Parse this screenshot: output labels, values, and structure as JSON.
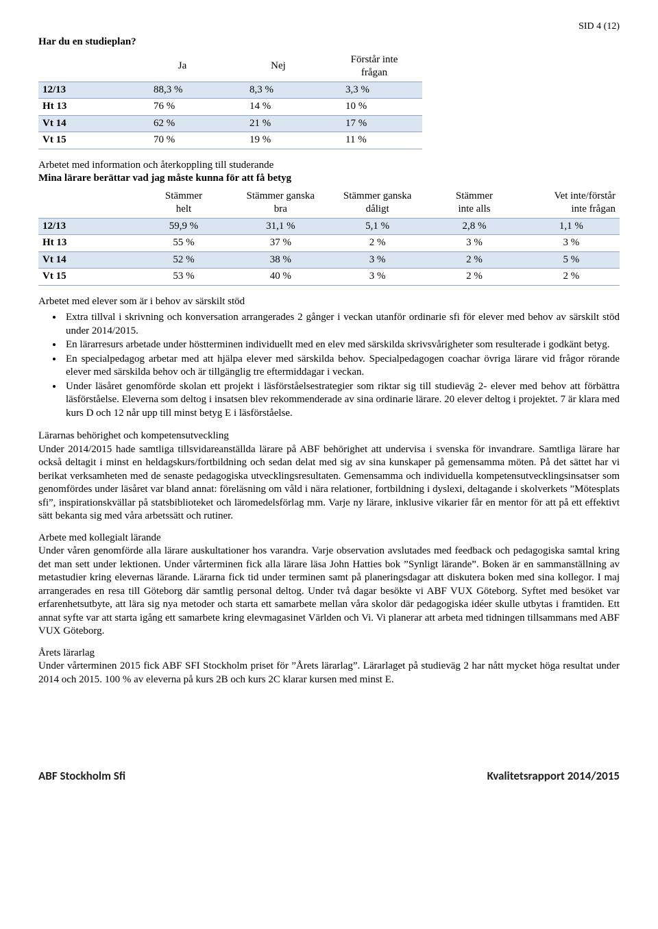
{
  "pageNumber": "SID 4 (12)",
  "q1": {
    "title": "Har du en studieplan?",
    "headers": [
      "",
      "Ja",
      "Nej",
      "Förstår inte frågan"
    ],
    "rows": [
      {
        "label": "12/13",
        "v": [
          "88,3 %",
          "8,3 %",
          "3,3 %"
        ],
        "shade": true
      },
      {
        "label": "Ht 13",
        "v": [
          "76 %",
          "14 %",
          "10 %"
        ],
        "shade": false
      },
      {
        "label": "Vt 14",
        "v": [
          "62 %",
          "21 %",
          "17 %"
        ],
        "shade": true
      },
      {
        "label": "Vt 15",
        "v": [
          "70 %",
          "19 %",
          "11 %"
        ],
        "shade": false
      }
    ]
  },
  "q2": {
    "intro": "Arbetet med information och återkoppling till studerande",
    "title": "Mina lärare berättar vad jag måste kunna för att få betyg",
    "headers": [
      "",
      "Stämmer helt",
      "Stämmer ganska bra",
      "Stämmer ganska dåligt",
      "Stämmer inte alls",
      "Vet inte/förstår inte frågan"
    ],
    "rows": [
      {
        "label": "12/13",
        "v": [
          "59,9 %",
          "31,1 %",
          "5,1 %",
          "2,8 %",
          "1,1 %"
        ],
        "shade": true
      },
      {
        "label": "Ht 13",
        "v": [
          "55 %",
          "37 %",
          "2 %",
          "3 %",
          "3 %"
        ],
        "shade": false
      },
      {
        "label": "Vt 14",
        "v": [
          "52 %",
          "38 %",
          "3 %",
          "2 %",
          "5 %"
        ],
        "shade": true
      },
      {
        "label": "Vt 15",
        "v": [
          "53 %",
          "40 %",
          "3 %",
          "2 %",
          "2 %"
        ],
        "shade": false
      }
    ]
  },
  "bulletsHeading": "Arbetet med elever som är i behov av särskilt stöd",
  "bullets": [
    "Extra tillval i skrivning och konversation arrangerades 2 gånger i veckan utanför ordinarie sfi för elever med behov av särskilt stöd under 2014/2015.",
    "En lärarresurs arbetade under höstterminen individuellt med en elev med särskilda skrivsvårigheter som resulterade i godkänt betyg.",
    "En specialpedagog arbetar med att hjälpa elever med särskilda behov. Specialpedagogen coachar övriga lärare vid frågor rörande elever med särskilda behov och är tillgänglig tre eftermiddagar i veckan.",
    "Under läsåret genomförde skolan ett projekt i läsförståelsestrategier som riktar sig till studieväg 2- elever med behov att förbättra läsförståelse. Eleverna som deltog i insatsen blev rekommenderade av sina ordinarie lärare. 20 elever deltog i projektet. 7 är klara med kurs D och 12 når upp till minst betyg E i läsförståelse."
  ],
  "sec1": {
    "heading": "Lärarnas behörighet och kompetensutveckling",
    "body": "Under 2014/2015 hade samtliga tillsvidareanställda lärare på ABF behörighet att undervisa i svenska för invandrare. Samtliga lärare har också deltagit i minst en heldagskurs/fortbildning och sedan delat med sig av sina kunskaper på gemensamma möten. På det sättet har vi berikat verksamheten med de senaste pedagogiska utvecklingsresultaten. Gemensamma och individuella kompetensutvecklingsinsatser som genomfördes under läsåret var bland annat: föreläsning om våld i nära relationer, fortbildning i dyslexi, deltagande i skolverkets ”Mötesplats sfi”, inspirationskvällar på statsbiblioteket och läromedelsförlag mm. Varje ny lärare, inklusive vikarier får en mentor för att på ett effektivt sätt bekanta sig med våra arbetssätt och rutiner."
  },
  "sec2": {
    "heading": "Arbete med kollegialt lärande",
    "body": "Under våren genomförde alla lärare auskultationer hos varandra. Varje observation avslutades med feedback och pedagogiska samtal kring det man sett under lektionen. Under vårterminen fick alla lärare läsa John Hatties bok ”Synligt lärande”. Boken är en sammanställning av metastudier kring elevernas lärande. Lärarna fick tid under terminen samt på planeringsdagar att diskutera boken med sina kollegor. I maj arrangerades en resa till Göteborg där samtlig personal deltog. Under två dagar besökte vi ABF VUX Göteborg. Syftet med besöket var erfarenhetsutbyte, att lära sig nya metoder och starta ett samarbete mellan våra skolor där pedagogiska idéer skulle utbytas i framtiden. Ett annat syfte var att starta igång ett samarbete kring elevmagasinet Världen och Vi. Vi planerar att arbeta med tidningen tillsammans med ABF VUX Göteborg."
  },
  "sec3": {
    "heading": "Årets lärarlag",
    "body": "Under vårterminen 2015 fick ABF SFI Stockholm priset för ”Årets lärarlag”. Lärarlaget på studieväg 2 har nått mycket höga resultat under 2014 och 2015. 100 % av eleverna på kurs 2B och kurs 2C klarar kursen med minst E."
  },
  "footer": {
    "left": "ABF Stockholm Sfi",
    "right": "Kvalitetsrapport 2014/2015"
  },
  "colors": {
    "rowShade": "#dbe5f1",
    "border": "#8ca5c8"
  }
}
